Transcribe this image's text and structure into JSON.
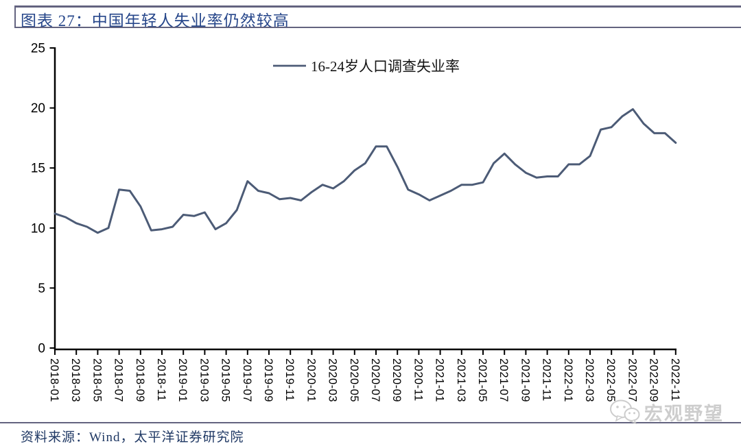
{
  "page": {
    "title": "图表 27：中国年轻人失业率仍然较高",
    "source": "资料来源：Wind，太平洋证券研究院",
    "watermark_text": "宏观野望",
    "watermark_icon": "wechat-icon"
  },
  "colors": {
    "line": "#4C5B76",
    "title_text": "#26468A",
    "source_text": "#1F3864",
    "rule": "#63637F",
    "axis": "#000000",
    "watermark": "#C8C8C8"
  },
  "chart_data": {
    "type": "line",
    "title": "图表 27：中国年轻人失业率仍然较高",
    "legend_position": "top-center",
    "grid": false,
    "ylim": [
      0,
      25
    ],
    "yticks": [
      0,
      5,
      10,
      15,
      20,
      25
    ],
    "xtick_step": 2,
    "x_label_rotation": 90,
    "x": [
      "2018-01",
      "2018-02",
      "2018-03",
      "2018-04",
      "2018-05",
      "2018-06",
      "2018-07",
      "2018-08",
      "2018-09",
      "2018-10",
      "2018-11",
      "2018-12",
      "2019-01",
      "2019-02",
      "2019-03",
      "2019-04",
      "2019-05",
      "2019-06",
      "2019-07",
      "2019-08",
      "2019-09",
      "2019-10",
      "2019-11",
      "2019-12",
      "2020-01",
      "2020-02",
      "2020-03",
      "2020-04",
      "2020-05",
      "2020-06",
      "2020-07",
      "2020-08",
      "2020-09",
      "2020-10",
      "2020-11",
      "2020-12",
      "2021-01",
      "2021-02",
      "2021-03",
      "2021-04",
      "2021-05",
      "2021-06",
      "2021-07",
      "2021-08",
      "2021-09",
      "2021-10",
      "2021-11",
      "2021-12",
      "2022-01",
      "2022-02",
      "2022-03",
      "2022-04",
      "2022-05",
      "2022-06",
      "2022-07",
      "2022-08",
      "2022-09",
      "2022-10",
      "2022-11"
    ],
    "series": [
      {
        "name": "16-24岁人口调查失业率",
        "color": "#4C5B76",
        "values": [
          11.2,
          10.9,
          10.4,
          10.1,
          9.6,
          10.0,
          13.2,
          13.1,
          11.8,
          9.8,
          9.9,
          10.1,
          11.1,
          11.0,
          11.3,
          9.9,
          10.4,
          11.5,
          13.9,
          13.1,
          12.9,
          12.4,
          12.5,
          12.3,
          13.0,
          13.6,
          13.3,
          13.9,
          14.8,
          15.4,
          16.8,
          16.8,
          15.1,
          13.2,
          12.8,
          12.3,
          12.7,
          13.1,
          13.6,
          13.6,
          13.8,
          15.4,
          16.2,
          15.3,
          14.6,
          14.2,
          14.3,
          14.3,
          15.3,
          15.3,
          16.0,
          18.2,
          18.4,
          19.3,
          19.9,
          18.7,
          17.9,
          17.9,
          17.1
        ]
      }
    ]
  }
}
